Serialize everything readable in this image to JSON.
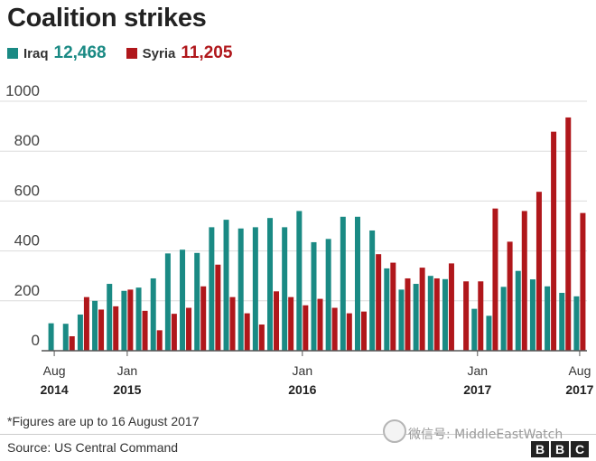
{
  "header": {
    "title": "Coalition strikes"
  },
  "legend": [
    {
      "name": "Iraq",
      "total": "12,468",
      "color": "#1a8a84"
    },
    {
      "name": "Syria",
      "total": "11,205",
      "color": "#b0171b"
    }
  ],
  "footnote": "*Figures are up to 16 August 2017",
  "source": "Source: US Central Command",
  "watermark": "微信号: MiddleEastWatch",
  "brand": [
    "B",
    "B",
    "C"
  ],
  "chart_data": {
    "type": "bar",
    "title": "Coalition strikes",
    "xlabel": "",
    "ylabel": "",
    "ylim": [
      0,
      1000
    ],
    "yticks": [
      0,
      200,
      400,
      600,
      800,
      1000
    ],
    "grid": true,
    "legend_position": "top-left",
    "categories": [
      "Aug 2014",
      "Sep 2014",
      "Oct 2014",
      "Nov 2014",
      "Dec 2014",
      "Jan 2015",
      "Feb 2015",
      "Mar 2015",
      "Apr 2015",
      "May 2015",
      "Jun 2015",
      "Jul 2015",
      "Aug 2015",
      "Sep 2015",
      "Oct 2015",
      "Nov 2015",
      "Dec 2015",
      "Jan 2016",
      "Feb 2016",
      "Mar 2016",
      "Apr 2016",
      "May 2016",
      "Jun 2016",
      "Jul 2016",
      "Aug 2016",
      "Sep 2016",
      "Oct 2016",
      "Nov 2016",
      "Dec 2016",
      "Jan 2017",
      "Feb 2017",
      "Mar 2017",
      "Apr 2017",
      "May 2017",
      "Jun 2017",
      "Jul 2017",
      "Aug 2017"
    ],
    "x_tick_labels": [
      {
        "index": 0,
        "month": "Aug",
        "year": "2014"
      },
      {
        "index": 5,
        "month": "Jan",
        "year": "2015"
      },
      {
        "index": 17,
        "month": "Jan",
        "year": "2016"
      },
      {
        "index": 29,
        "month": "Jan",
        "year": "2017"
      },
      {
        "index": 36,
        "month": "Aug",
        "year": "2017"
      }
    ],
    "series": [
      {
        "name": "Iraq",
        "color": "#1a8a84",
        "values": [
          110,
          108,
          145,
          200,
          268,
          240,
          253,
          290,
          390,
          405,
          392,
          495,
          525,
          490,
          495,
          532,
          495,
          560,
          435,
          448,
          537,
          537,
          482,
          330,
          245,
          268,
          300,
          287,
          0,
          168,
          140,
          256,
          320,
          286,
          258,
          232,
          218
        ]
      },
      {
        "name": "Syria",
        "color": "#b0171b",
        "values": [
          0,
          58,
          215,
          165,
          178,
          245,
          160,
          82,
          148,
          172,
          258,
          345,
          215,
          150,
          105,
          238,
          215,
          182,
          208,
          172,
          150,
          157,
          387,
          353,
          290,
          333,
          290,
          350,
          278,
          278,
          570,
          437,
          560,
          637,
          878,
          935,
          552
        ]
      }
    ]
  }
}
